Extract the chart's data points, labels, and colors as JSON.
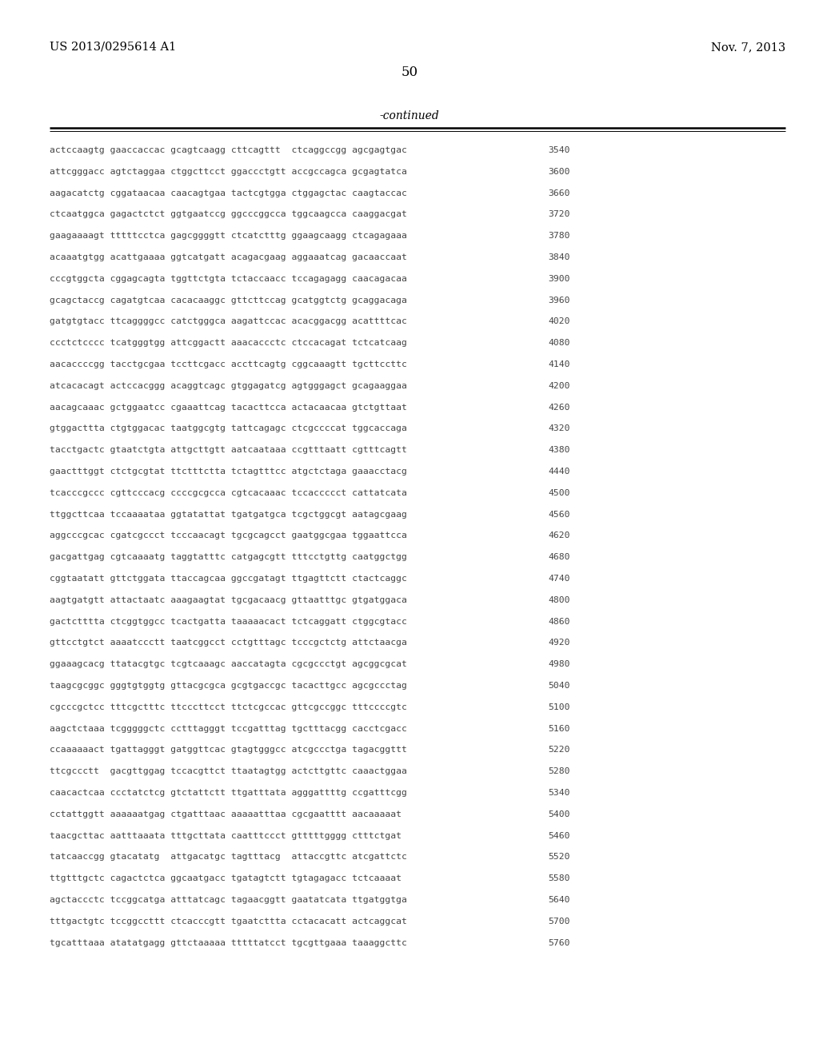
{
  "header_left": "US 2013/0295614 A1",
  "header_right": "Nov. 7, 2013",
  "page_number": "50",
  "continued_text": "-continued",
  "background_color": "#ffffff",
  "text_color": "#000000",
  "sequence_color": "#444444",
  "line_color": "#000000",
  "header_fontsize": 10.5,
  "page_num_fontsize": 12,
  "continued_fontsize": 10,
  "seq_fontsize": 8.2,
  "num_fontsize": 8.2,
  "sequence_lines": [
    [
      "actccaagtg gaaccaccac gcagtcaagg cttcagttt  ctcaggccgg agcgagtgac",
      "3540"
    ],
    [
      "attcgggacc agtctaggaa ctggcttcct ggaccctgtt accgccagca gcgagtatca",
      "3600"
    ],
    [
      "aagacatctg cggataacaa caacagtgaa tactcgtgga ctggagctac caagtaccac",
      "3660"
    ],
    [
      "ctcaatggca gagactctct ggtgaatccg ggcccggcca tggcaagcca caaggacgat",
      "3720"
    ],
    [
      "gaagaaaagt tttttcctca gagcggggtt ctcatctttg ggaagcaagg ctcagagaaa",
      "3780"
    ],
    [
      "acaaatgtgg acattgaaaa ggtcatgatt acagacgaag aggaaatcag gacaaccaat",
      "3840"
    ],
    [
      "cccgtggcta cggagcagta tggttctgta tctaccaacc tccagagagg caacagacaa",
      "3900"
    ],
    [
      "gcagctaccg cagatgtcaa cacacaaggc gttcttccag gcatggtctg gcaggacaga",
      "3960"
    ],
    [
      "gatgtgtacc ttcaggggcc catctgggca aagattccac acacggacgg acattttcac",
      "4020"
    ],
    [
      "ccctctcccc tcatgggtgg attcggactt aaacaccctc ctccacagat tctcatcaag",
      "4080"
    ],
    [
      "aacaccccgg tacctgcgaa tccttcgacc accttcagtg cggcaaagtt tgcttccttc",
      "4140"
    ],
    [
      "atcacacagt actccacggg acaggtcagc gtggagatcg agtgggagct gcagaaggaa",
      "4200"
    ],
    [
      "aacagcaaac gctggaatcc cgaaattcag tacacttcca actacaacaa gtctgttaat",
      "4260"
    ],
    [
      "gtggacttta ctgtggacac taatggcgtg tattcagagc ctcgccccat tggcaccaga",
      "4320"
    ],
    [
      "tacctgactc gtaatctgta attgcttgtt aatcaataaa ccgtttaatt cgtttcagtt",
      "4380"
    ],
    [
      "gaactttggt ctctgcgtat ttctttctta tctagtttcc atgctctaga gaaacctacg",
      "4440"
    ],
    [
      "tcacccgccc cgttcccacg ccccgcgcca cgtcacaaac tccaccccct cattatcata",
      "4500"
    ],
    [
      "ttggcttcaa tccaaaataa ggtatattat tgatgatgca tcgctggcgt aatagcgaag",
      "4560"
    ],
    [
      "aggcccgcac cgatcgccct tcccaacagt tgcgcagcct gaatggcgaa tggaattcca",
      "4620"
    ],
    [
      "gacgattgag cgtcaaaatg taggtatttc catgagcgtt tttcctgttg caatggctgg",
      "4680"
    ],
    [
      "cggtaatatt gttctggata ttaccagcaa ggccgatagt ttgagttctt ctactcaggc",
      "4740"
    ],
    [
      "aagtgatgtt attactaatc aaagaagtat tgcgacaacg gttaatttgc gtgatggaca",
      "4800"
    ],
    [
      "gactctttta ctcggtggcc tcactgatta taaaaacact tctcaggatt ctggcgtacc",
      "4860"
    ],
    [
      "gttcctgtct aaaatccctt taatcggcct cctgtttagc tcccgctctg attctaacga",
      "4920"
    ],
    [
      "ggaaagcacg ttatacgtgc tcgtcaaagc aaccatagta cgcgccctgt agcggcgcat",
      "4980"
    ],
    [
      "taagcgcggc gggtgtggtg gttacgcgca gcgtgaccgc tacacttgcc agcgccctag",
      "5040"
    ],
    [
      "cgcccgctcc tttcgctttc ttcccttcct ttctcgccac gttcgccggc tttccccgtc",
      "5100"
    ],
    [
      "aagctctaaa tcgggggctc cctttagggt tccgatttag tgctttacgg cacctcgacc",
      "5160"
    ],
    [
      "ccaaaaaact tgattagggt gatggttcac gtagtgggcc atcgccctga tagacggttt",
      "5220"
    ],
    [
      "ttcgccctt  gacgttggag tccacgttct ttaatagtgg actcttgttc caaactggaa",
      "5280"
    ],
    [
      "caacactcaa ccctatctcg gtctattctt ttgatttata agggattttg ccgatttcgg",
      "5340"
    ],
    [
      "cctattggtt aaaaaatgag ctgatttaac aaaaatttaa cgcgaatttt aacaaaaat",
      "5400"
    ],
    [
      "taacgcttac aatttaaata tttgcttata caatttccct gtttttgggg ctttctgat",
      "5460"
    ],
    [
      "tatcaaccgg gtacatatg  attgacatgc tagtttacg  attaccgttc atcgattctc",
      "5520"
    ],
    [
      "ttgtttgctc cagactctca ggcaatgacc tgatagtctt tgtagagacc tctcaaaat",
      "5580"
    ],
    [
      "agctaccctc tccggcatga atttatcagc tagaacggtt gaatatcata ttgatggtga",
      "5640"
    ],
    [
      "tttgactgtc tccggccttt ctcacccgtt tgaatcttta cctacacatt actcaggcat",
      "5700"
    ],
    [
      "tgcatttaaa atatatgagg gttctaaaaa tttttatcct tgcgttgaaa taaaggcttc",
      "5760"
    ]
  ]
}
